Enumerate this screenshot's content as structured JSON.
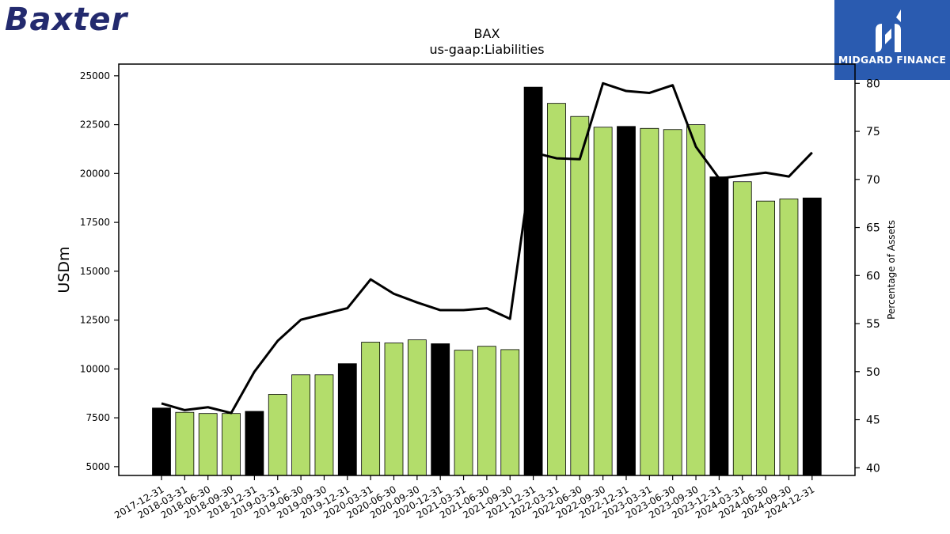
{
  "logos": {
    "company": "Baxter",
    "company_color": "#232a6e",
    "publisher": "MIDGARD FINANCE",
    "publisher_bg": "#2a5bb0"
  },
  "chart_data": {
    "type": "bar",
    "title": "BAX",
    "subtitle": "us-gaap:Liabilities",
    "ylabel": "USDm",
    "y2label": "Percentage of Assets",
    "ylim": [
      4550,
      25600
    ],
    "y2lim": [
      39.2,
      82.0
    ],
    "yticks": [
      5000,
      7500,
      10000,
      12500,
      15000,
      17500,
      20000,
      22500,
      25000
    ],
    "y2ticks": [
      40,
      45,
      50,
      55,
      60,
      65,
      70,
      75,
      80
    ],
    "categories": [
      "2017-12-31",
      "2018-03-31",
      "2018-06-30",
      "2018-09-30",
      "2018-12-31",
      "2019-03-31",
      "2019-06-30",
      "2019-09-30",
      "2019-12-31",
      "2020-03-31",
      "2020-06-30",
      "2020-09-30",
      "2020-12-31",
      "2021-03-31",
      "2021-06-30",
      "2021-09-30",
      "2021-12-31",
      "2022-03-31",
      "2022-06-30",
      "2022-09-30",
      "2022-12-31",
      "2023-03-31",
      "2023-06-30",
      "2023-09-30",
      "2023-12-31",
      "2024-03-31",
      "2024-06-30",
      "2024-09-30",
      "2024-12-31"
    ],
    "series": [
      {
        "type": "bar",
        "axis": "left",
        "values": [
          8000,
          7780,
          7720,
          7720,
          7830,
          8700,
          9700,
          9700,
          10270,
          11370,
          11330,
          11490,
          11290,
          10960,
          11160,
          10990,
          24420,
          23590,
          22920,
          22370,
          22410,
          22310,
          22250,
          22500,
          19830,
          19580,
          18590,
          18700,
          18750
        ],
        "colors": [
          "#000000",
          "#b3dd6b",
          "#b3dd6b",
          "#b3dd6b",
          "#000000",
          "#b3dd6b",
          "#b3dd6b",
          "#b3dd6b",
          "#000000",
          "#b3dd6b",
          "#b3dd6b",
          "#b3dd6b",
          "#000000",
          "#b3dd6b",
          "#b3dd6b",
          "#b3dd6b",
          "#000000",
          "#b3dd6b",
          "#b3dd6b",
          "#b3dd6b",
          "#000000",
          "#b3dd6b",
          "#b3dd6b",
          "#b3dd6b",
          "#000000",
          "#b3dd6b",
          "#b3dd6b",
          "#b3dd6b",
          "#000000"
        ]
      },
      {
        "type": "line",
        "axis": "right",
        "color": "#000000",
        "values": [
          46.7,
          46.0,
          46.3,
          45.7,
          50.0,
          53.2,
          55.4,
          56.0,
          56.6,
          59.6,
          58.1,
          57.2,
          56.4,
          56.4,
          56.6,
          55.5,
          72.8,
          72.2,
          72.1,
          80.0,
          79.2,
          79.0,
          79.8,
          73.4,
          70.1,
          70.4,
          70.7,
          70.3,
          72.8
        ]
      }
    ],
    "grid": false,
    "legend": "none"
  }
}
